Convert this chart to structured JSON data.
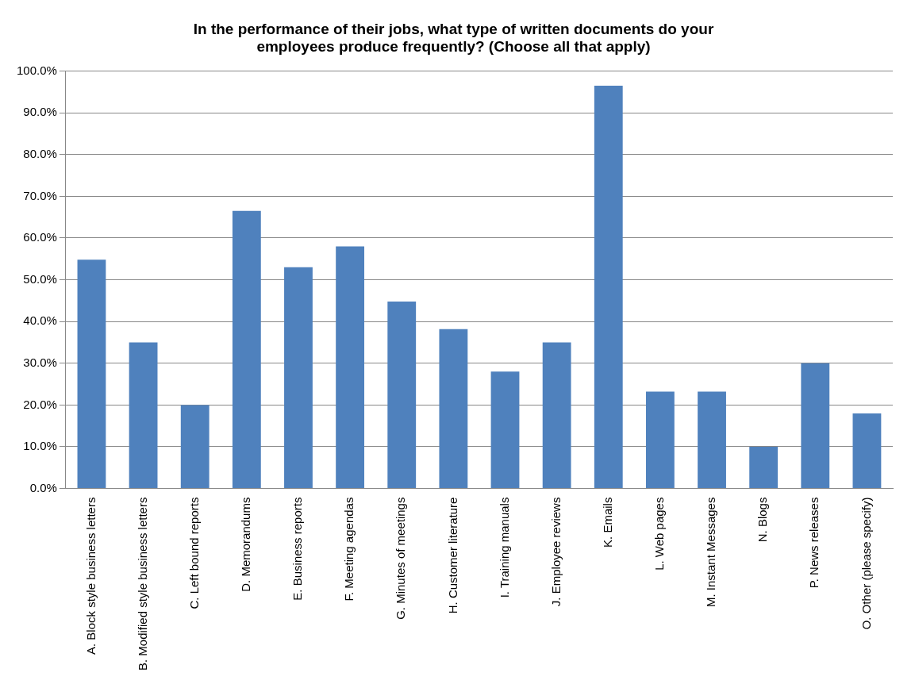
{
  "chart_data": {
    "type": "bar",
    "title": "In the performance of their jobs, what type of written documents do your employees produce frequently? (Choose all that apply)",
    "categories": [
      "A. Block style business letters",
      "B. Modified style business letters",
      "C. Left bound reports",
      "D. Memorandums",
      "E. Business reports",
      "F. Meeting agendas",
      "G. Minutes of meetings",
      "H. Customer literature",
      "I. Training manuals",
      "J. Employee reviews",
      "K. Emails",
      "L. Web pages",
      "M. Instant Messages",
      "N. Blogs",
      "P. News releases",
      "O. Other (please specify)"
    ],
    "values": [
      54.8,
      35,
      20,
      66.5,
      53,
      58,
      44.8,
      38.2,
      28,
      35,
      96.5,
      23.2,
      23.2,
      10,
      30,
      18
    ],
    "color": "#4f81bd",
    "ylim": [
      0,
      100
    ],
    "yticks": [
      {
        "value": 0,
        "label": "0.0%"
      },
      {
        "value": 10,
        "label": "10.0%"
      },
      {
        "value": 20,
        "label": "20.0%"
      },
      {
        "value": 30,
        "label": "30.0%"
      },
      {
        "value": 40,
        "label": "40.0%"
      },
      {
        "value": 50,
        "label": "50.0%"
      },
      {
        "value": 60,
        "label": "60.0%"
      },
      {
        "value": 70,
        "label": "70.0%"
      },
      {
        "value": 80,
        "label": "80.0%"
      },
      {
        "value": 90,
        "label": "90.0%"
      },
      {
        "value": 100,
        "label": "100.0%"
      }
    ],
    "grid": "y",
    "legend": false
  }
}
